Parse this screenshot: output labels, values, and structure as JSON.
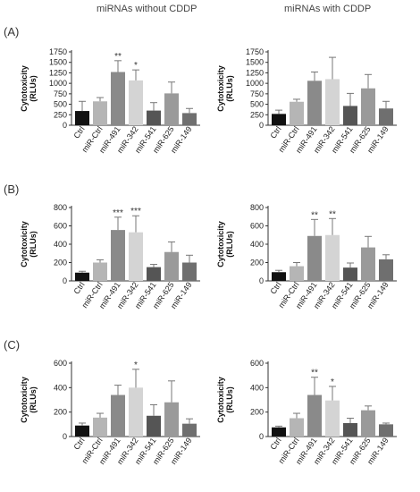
{
  "column_titles": [
    "miRNAs without CDDP",
    "miRNAs with CDDP"
  ],
  "row_labels": [
    "(A)",
    "(B)",
    "(C)"
  ],
  "colors": {
    "Ctrl": "#111111",
    "miR-Ctrl": "#b5b5b5",
    "miR-491": "#8a8a8a",
    "miR-342": "#d4d4d4",
    "miR-541": "#555555",
    "miR-625": "#9a9a9a",
    "miR-149": "#6f6f6f",
    "error_bar": "#777777",
    "axis": "#333333"
  },
  "chart_data": [
    {
      "type": "bar",
      "panel": "(A)",
      "group": "miRNAs without CDDP",
      "categories": [
        "Ctrl",
        "miR-Ctrl",
        "miR-491",
        "miR-342",
        "miR-541",
        "miR-625",
        "miR-149"
      ],
      "values": [
        340,
        570,
        1270,
        1070,
        350,
        760,
        290
      ],
      "errors": [
        230,
        90,
        270,
        250,
        190,
        270,
        110
      ],
      "significance": [
        "",
        "",
        "**",
        "*",
        "",
        "",
        ""
      ],
      "ylabel": "Cytotoxicity\n(RLUs)",
      "ylim": [
        0,
        1750
      ],
      "yticks": [
        0,
        250,
        500,
        750,
        1000,
        1250,
        1500,
        1750
      ]
    },
    {
      "type": "bar",
      "panel": "(A)",
      "group": "miRNAs with CDDP",
      "categories": [
        "Ctrl",
        "miR-Ctrl",
        "miR-491",
        "miR-342",
        "miR-541",
        "miR-625",
        "miR-149"
      ],
      "values": [
        270,
        560,
        1060,
        1100,
        460,
        880,
        400
      ],
      "errors": [
        90,
        60,
        210,
        520,
        300,
        330,
        170
      ],
      "significance": [
        "",
        "",
        "",
        "",
        "",
        "",
        ""
      ],
      "ylabel": "Cytotoxicity\n(RLUs)",
      "ylim": [
        0,
        1750
      ],
      "yticks": [
        0,
        250,
        500,
        750,
        1000,
        1250,
        1500,
        1750
      ]
    },
    {
      "type": "bar",
      "panel": "(B)",
      "group": "miRNAs without CDDP",
      "categories": [
        "Ctrl",
        "miR-Ctrl",
        "miR-491",
        "miR-342",
        "miR-541",
        "miR-625",
        "miR-149"
      ],
      "values": [
        90,
        200,
        555,
        530,
        150,
        315,
        200
      ],
      "errors": [
        15,
        30,
        140,
        180,
        30,
        110,
        80
      ],
      "significance": [
        "",
        "",
        "***",
        "***",
        "",
        "",
        ""
      ],
      "ylabel": "Cytotoxicity\n(RLUs)",
      "ylim": [
        0,
        800
      ],
      "yticks": [
        0,
        200,
        400,
        600,
        800
      ]
    },
    {
      "type": "bar",
      "panel": "(B)",
      "group": "miRNAs with CDDP",
      "categories": [
        "Ctrl",
        "miR-Ctrl",
        "miR-491",
        "miR-342",
        "miR-541",
        "miR-625",
        "miR-149"
      ],
      "values": [
        95,
        160,
        490,
        500,
        145,
        365,
        235
      ],
      "errors": [
        20,
        40,
        180,
        180,
        50,
        120,
        50
      ],
      "significance": [
        "",
        "",
        "**",
        "**",
        "",
        "",
        ""
      ],
      "ylabel": "Cytotoxicity\n(RLUs)",
      "ylim": [
        0,
        800
      ],
      "yticks": [
        0,
        200,
        400,
        600,
        800
      ]
    },
    {
      "type": "bar",
      "panel": "(C)",
      "group": "miRNAs without CDDP",
      "categories": [
        "Ctrl",
        "miR-Ctrl",
        "miR-491",
        "miR-342",
        "miR-541",
        "miR-625",
        "miR-149"
      ],
      "values": [
        90,
        155,
        340,
        400,
        170,
        280,
        105
      ],
      "errors": [
        20,
        35,
        80,
        150,
        90,
        175,
        40
      ],
      "significance": [
        "",
        "",
        "",
        "*",
        "",
        "",
        ""
      ],
      "ylabel": "Cytotoxicity\n(RLUs)",
      "ylim": [
        0,
        600
      ],
      "yticks": [
        0,
        200,
        400,
        600
      ]
    },
    {
      "type": "bar",
      "panel": "(C)",
      "group": "miRNAs with CDDP",
      "categories": [
        "Ctrl",
        "miR-Ctrl",
        "miR-491",
        "miR-342",
        "miR-541",
        "miR-625",
        "miR-149"
      ],
      "values": [
        75,
        150,
        340,
        295,
        110,
        215,
        100
      ],
      "errors": [
        10,
        40,
        145,
        115,
        40,
        35,
        10
      ],
      "significance": [
        "",
        "",
        "**",
        "*",
        "",
        "",
        ""
      ],
      "ylabel": "Cytotoxicity\n(RLUs)",
      "ylim": [
        0,
        600
      ],
      "yticks": [
        0,
        200,
        400,
        600
      ]
    }
  ]
}
